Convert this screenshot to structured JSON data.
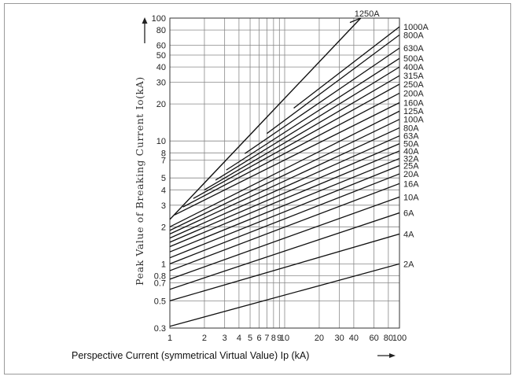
{
  "chart_data": {
    "type": "line",
    "scale": "log-log",
    "xlabel": "Perspective Current (symmetrical Virtual Value) Ip  (kA)",
    "ylabel": "Peak Value of Breaking Current  Io(kA)",
    "xlim": [
      1,
      100
    ],
    "ylim": [
      0.3,
      100
    ],
    "grid": true,
    "xticks": [
      1,
      2,
      3,
      4,
      5,
      6,
      7,
      8,
      9,
      10,
      20,
      30,
      40,
      60,
      80,
      100
    ],
    "xtick_labels": [
      "1",
      "2",
      "3",
      "4",
      "5",
      "6",
      "7",
      "8",
      "9",
      "10",
      "20",
      "30",
      "40",
      "60",
      "80",
      "100"
    ],
    "yticks": [
      0.3,
      0.5,
      0.7,
      0.8,
      1,
      2,
      3,
      4,
      5,
      7,
      8,
      10,
      20,
      30,
      40,
      50,
      60,
      80,
      100
    ],
    "ytick_labels": [
      "0.3",
      "0.5",
      "0.7",
      "0.8",
      "1",
      "2",
      "3",
      "4",
      "5",
      "7",
      "8",
      "10",
      "20",
      "30",
      "40",
      "50",
      "60",
      "80",
      "100"
    ],
    "envelope": {
      "x": [
        1,
        46
      ],
      "y": [
        2.3,
        100
      ]
    },
    "series": [
      {
        "name": "2A",
        "x": [
          1,
          100
        ],
        "y": [
          0.31,
          1.0
        ]
      },
      {
        "name": "4A",
        "x": [
          1,
          100
        ],
        "y": [
          0.5,
          1.75
        ]
      },
      {
        "name": "6A",
        "x": [
          1,
          100
        ],
        "y": [
          0.62,
          2.6
        ]
      },
      {
        "name": "10A",
        "x": [
          1,
          100
        ],
        "y": [
          0.75,
          3.5
        ]
      },
      {
        "name": "16A",
        "x": [
          1,
          100
        ],
        "y": [
          0.88,
          4.5
        ]
      },
      {
        "name": "20A",
        "x": [
          1,
          100
        ],
        "y": [
          1.0,
          5.4
        ]
      },
      {
        "name": "25A",
        "x": [
          1,
          100
        ],
        "y": [
          1.12,
          6.3
        ]
      },
      {
        "name": "32A",
        "x": [
          1,
          100
        ],
        "y": [
          1.25,
          7.2
        ]
      },
      {
        "name": "40A",
        "x": [
          1,
          100
        ],
        "y": [
          1.38,
          8.3
        ]
      },
      {
        "name": "50A",
        "x": [
          1,
          100
        ],
        "y": [
          1.5,
          9.5
        ]
      },
      {
        "name": "63A",
        "x": [
          1,
          100
        ],
        "y": [
          1.62,
          11.0
        ]
      },
      {
        "name": "80A",
        "x": [
          1,
          100
        ],
        "y": [
          1.75,
          12.8
        ]
      },
      {
        "name": "100A",
        "x": [
          1,
          100
        ],
        "y": [
          1.87,
          15.0
        ]
      },
      {
        "name": "125A",
        "x": [
          1,
          100
        ],
        "y": [
          2.0,
          17.5
        ]
      },
      {
        "name": "160A",
        "x": [
          1.1,
          100
        ],
        "y": [
          2.5,
          20.5
        ]
      },
      {
        "name": "200A",
        "x": [
          1.3,
          100
        ],
        "y": [
          2.9,
          24.5
        ]
      },
      {
        "name": "250A",
        "x": [
          1.6,
          100
        ],
        "y": [
          3.4,
          29.0
        ]
      },
      {
        "name": "315A",
        "x": [
          2.0,
          100
        ],
        "y": [
          4.0,
          34.0
        ]
      },
      {
        "name": "400A",
        "x": [
          2.5,
          100
        ],
        "y": [
          4.8,
          40.0
        ]
      },
      {
        "name": "500A",
        "x": [
          3.1,
          100
        ],
        "y": [
          5.8,
          47.0
        ]
      },
      {
        "name": "630A",
        "x": [
          4.5,
          100
        ],
        "y": [
          7.9,
          57.0
        ]
      },
      {
        "name": "800A",
        "x": [
          7,
          100
        ],
        "y": [
          11.5,
          73.0
        ]
      },
      {
        "name": "1000A",
        "x": [
          12,
          100
        ],
        "y": [
          18.5,
          85.0
        ]
      },
      {
        "name": "1250A",
        "x": [
          37,
          46
        ],
        "y": [
          92.0,
          100.0
        ]
      }
    ]
  }
}
